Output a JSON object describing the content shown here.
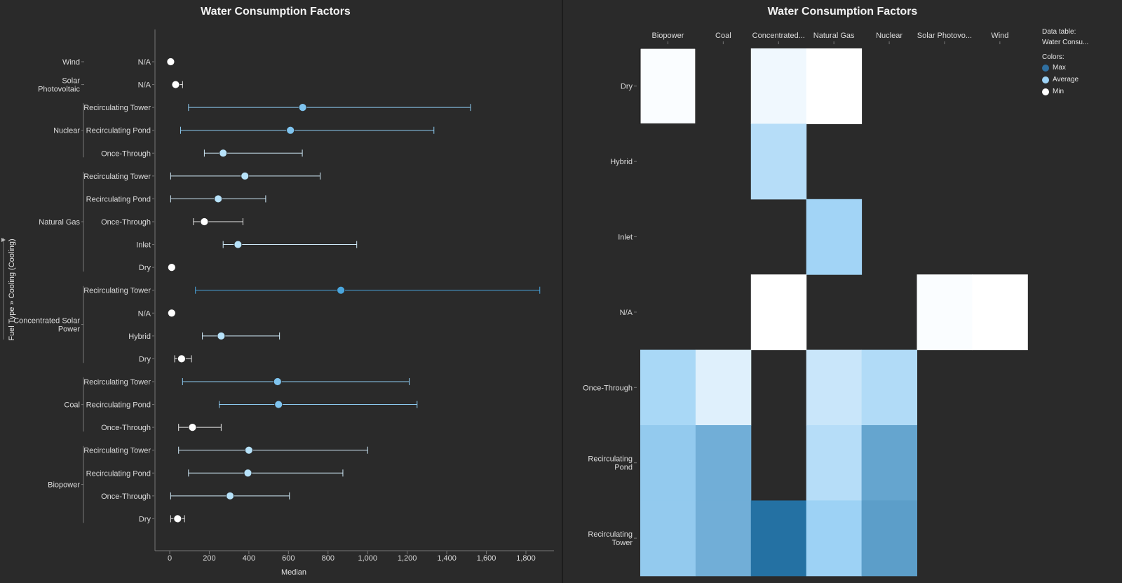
{
  "chart_data": [
    {
      "type": "dot-range",
      "title": "Water Consumption Factors",
      "xlabel": "Median",
      "ylabel": "Fuel Type » Cooling (Cooling)",
      "xlim": [
        -80,
        1950
      ],
      "xticks": [
        0,
        200,
        400,
        600,
        800,
        1000,
        1200,
        1400,
        1600,
        1800
      ],
      "xtick_labels": [
        "0",
        "200",
        "400",
        "600",
        "800",
        "1,000",
        "1,200",
        "1,400",
        "1,600",
        "1,800"
      ],
      "grid": false,
      "groups": [
        {
          "name": "Wind",
          "rows": [
            {
              "cooling": "N/A",
              "median": 5,
              "min": 5,
              "max": 5
            }
          ]
        },
        {
          "name": "Solar Photovoltaic",
          "rows": [
            {
              "cooling": "N/A",
              "median": 30,
              "min": 20,
              "max": 65
            }
          ]
        },
        {
          "name": "Nuclear",
          "rows": [
            {
              "cooling": "Recirculating Tower",
              "median": 672,
              "min": 95,
              "max": 1520
            },
            {
              "cooling": "Recirculating Pond",
              "median": 610,
              "min": 55,
              "max": 1335
            },
            {
              "cooling": "Once-Through",
              "median": 270,
              "min": 175,
              "max": 670
            }
          ]
        },
        {
          "name": "Natural Gas",
          "rows": [
            {
              "cooling": "Recirculating Tower",
              "median": 380,
              "min": 5,
              "max": 760
            },
            {
              "cooling": "Recirculating Pond",
              "median": 245,
              "min": 5,
              "max": 485
            },
            {
              "cooling": "Once-Through",
              "median": 175,
              "min": 120,
              "max": 370
            },
            {
              "cooling": "Inlet",
              "median": 345,
              "min": 270,
              "max": 945
            },
            {
              "cooling": "Dry",
              "median": 10,
              "min": 10,
              "max": 10
            }
          ]
        },
        {
          "name": "Concentrated Solar Power",
          "rows": [
            {
              "cooling": "Recirculating Tower",
              "median": 865,
              "min": 130,
              "max": 1870
            },
            {
              "cooling": "N/A",
              "median": 10,
              "min": 10,
              "max": 10
            },
            {
              "cooling": "Hybrid",
              "median": 260,
              "min": 165,
              "max": 555
            },
            {
              "cooling": "Dry",
              "median": 60,
              "min": 25,
              "max": 110
            }
          ]
        },
        {
          "name": "Coal",
          "rows": [
            {
              "cooling": "Recirculating Tower",
              "median": 545,
              "min": 65,
              "max": 1210
            },
            {
              "cooling": "Recirculating Pond",
              "median": 550,
              "min": 250,
              "max": 1250
            },
            {
              "cooling": "Once-Through",
              "median": 115,
              "min": 45,
              "max": 260
            }
          ]
        },
        {
          "name": "Biopower",
          "rows": [
            {
              "cooling": "Recirculating Tower",
              "median": 400,
              "min": 45,
              "max": 1000
            },
            {
              "cooling": "Recirculating Pond",
              "median": 395,
              "min": 95,
              "max": 875
            },
            {
              "cooling": "Once-Through",
              "median": 305,
              "min": 5,
              "max": 605
            },
            {
              "cooling": "Dry",
              "median": 40,
              "min": 5,
              "max": 75
            }
          ]
        }
      ]
    },
    {
      "type": "heatmap",
      "title": "Water Consumption Factors",
      "columns": [
        "Biopower",
        "Coal",
        "Concentrated...",
        "Natural Gas",
        "Nuclear",
        "Solar Photovo...",
        "Wind"
      ],
      "rows": [
        "Dry",
        "Hybrid",
        "Inlet",
        "N/A",
        "Once-Through",
        "Recirculating Pond",
        "Recirculating Tower"
      ],
      "values": [
        [
          0.02,
          null,
          0.06,
          0.0,
          null,
          null,
          null
        ],
        [
          null,
          null,
          0.3,
          null,
          null,
          null,
          null
        ],
        [
          null,
          null,
          null,
          0.38,
          null,
          null,
          null
        ],
        [
          null,
          null,
          0.0,
          null,
          null,
          0.02,
          0.0
        ],
        [
          0.35,
          0.13,
          null,
          0.22,
          0.32,
          null,
          null
        ],
        [
          0.45,
          0.62,
          null,
          0.3,
          0.68,
          null,
          null
        ],
        [
          0.45,
          0.62,
          1.0,
          0.4,
          0.72,
          null,
          null
        ]
      ],
      "color_scale": {
        "min": "#ffffff",
        "average": "#9dd2f5",
        "max": "#2471a3"
      },
      "legend": {
        "placement": "top-right",
        "data_table_label": "Data table:",
        "data_table_value": "Water Consu...",
        "colors_label": "Colors:",
        "entries": [
          {
            "label": "Max",
            "color": "#2f6fa0"
          },
          {
            "label": "Average",
            "color": "#9dd2f5"
          },
          {
            "label": "Min",
            "color": "#ffffff"
          }
        ]
      }
    }
  ]
}
